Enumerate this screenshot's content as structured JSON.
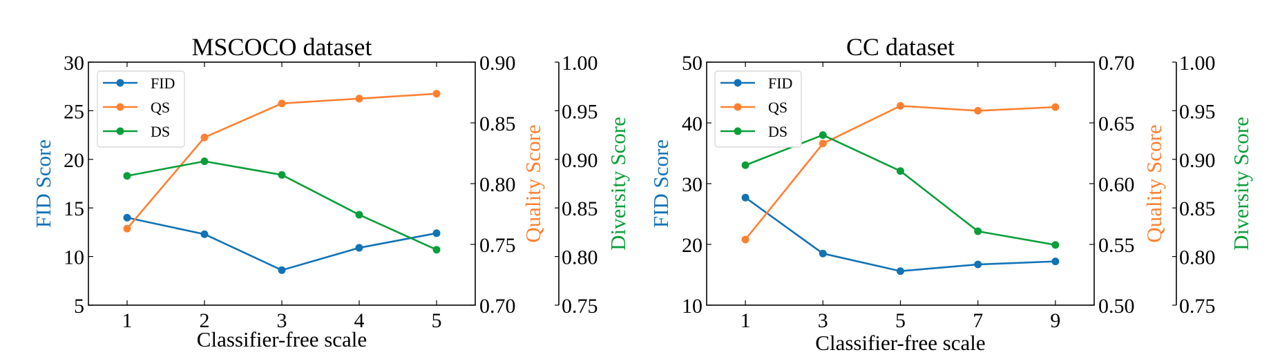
{
  "colors": {
    "fid": "#1172B6",
    "qs": "#FF8030",
    "ds": "#0A9E3A"
  },
  "chart_data": [
    {
      "type": "line",
      "title": "MSCOCO dataset",
      "xlabel": "Classifier-free scale",
      "x": [
        1,
        2,
        3,
        4,
        5
      ],
      "x_ticks": [
        "1",
        "2",
        "3",
        "4",
        "5"
      ],
      "xlim": [
        0.5,
        5.5
      ],
      "axes": {
        "fid": {
          "label": "FID Score",
          "lim": [
            5,
            30
          ],
          "ticks": [
            "5",
            "10",
            "15",
            "20",
            "25",
            "30"
          ],
          "tick_values": [
            5,
            10,
            15,
            20,
            25,
            30
          ],
          "side": "left"
        },
        "qs": {
          "label": "Quality Score",
          "lim": [
            0.7,
            0.9
          ],
          "ticks": [
            "0.70",
            "0.75",
            "0.80",
            "0.85",
            "0.90"
          ],
          "tick_values": [
            0.7,
            0.75,
            0.8,
            0.85,
            0.9
          ],
          "side": "right"
        },
        "ds": {
          "label": "Diversity Score",
          "lim": [
            0.75,
            1.0
          ],
          "ticks": [
            "0.75",
            "0.80",
            "0.85",
            "0.90",
            "0.95",
            "1.00"
          ],
          "tick_values": [
            0.75,
            0.8,
            0.85,
            0.9,
            0.95,
            1.0
          ],
          "side": "right-outer"
        }
      },
      "series": [
        {
          "name": "FID",
          "axis": "fid",
          "values": [
            14.0,
            12.3,
            8.6,
            10.9,
            12.4
          ]
        },
        {
          "name": "QS",
          "axis": "qs",
          "values": [
            0.763,
            0.838,
            0.866,
            0.87,
            0.874
          ]
        },
        {
          "name": "DS",
          "axis": "ds",
          "values": [
            0.883,
            0.898,
            0.884,
            0.843,
            0.807
          ]
        }
      ],
      "legend": {
        "entries": [
          "FID",
          "QS",
          "DS"
        ],
        "placement": "upper-left"
      },
      "grid": false
    },
    {
      "type": "line",
      "title": "CC dataset",
      "xlabel": "Classifier-free scale",
      "x": [
        1,
        3,
        5,
        7,
        9
      ],
      "x_ticks": [
        "1",
        "3",
        "5",
        "7",
        "9"
      ],
      "xlim": [
        0,
        10
      ],
      "axes": {
        "fid": {
          "label": "FID Score",
          "lim": [
            10,
            50
          ],
          "ticks": [
            "10",
            "20",
            "30",
            "40",
            "50"
          ],
          "tick_values": [
            10,
            20,
            30,
            40,
            50
          ],
          "side": "left"
        },
        "qs": {
          "label": "Quality Score",
          "lim": [
            0.5,
            0.7
          ],
          "ticks": [
            "0.50",
            "0.55",
            "0.60",
            "0.65",
            "0.70"
          ],
          "tick_values": [
            0.5,
            0.55,
            0.6,
            0.65,
            0.7
          ],
          "side": "right"
        },
        "ds": {
          "label": "Diversity Score",
          "lim": [
            0.75,
            1.0
          ],
          "ticks": [
            "0.75",
            "0.80",
            "0.85",
            "0.90",
            "0.95",
            "1.00"
          ],
          "tick_values": [
            0.75,
            0.8,
            0.85,
            0.9,
            0.95,
            1.0
          ],
          "side": "right-outer"
        }
      },
      "series": [
        {
          "name": "FID",
          "axis": "fid",
          "values": [
            27.7,
            18.5,
            15.6,
            16.7,
            17.2
          ]
        },
        {
          "name": "QS",
          "axis": "qs",
          "values": [
            0.554,
            0.633,
            0.664,
            0.66,
            0.663
          ]
        },
        {
          "name": "DS",
          "axis": "ds",
          "values": [
            0.894,
            0.925,
            0.888,
            0.826,
            0.812
          ]
        }
      ],
      "legend": {
        "entries": [
          "FID",
          "QS",
          "DS"
        ],
        "placement": "upper-left"
      },
      "grid": false
    }
  ]
}
